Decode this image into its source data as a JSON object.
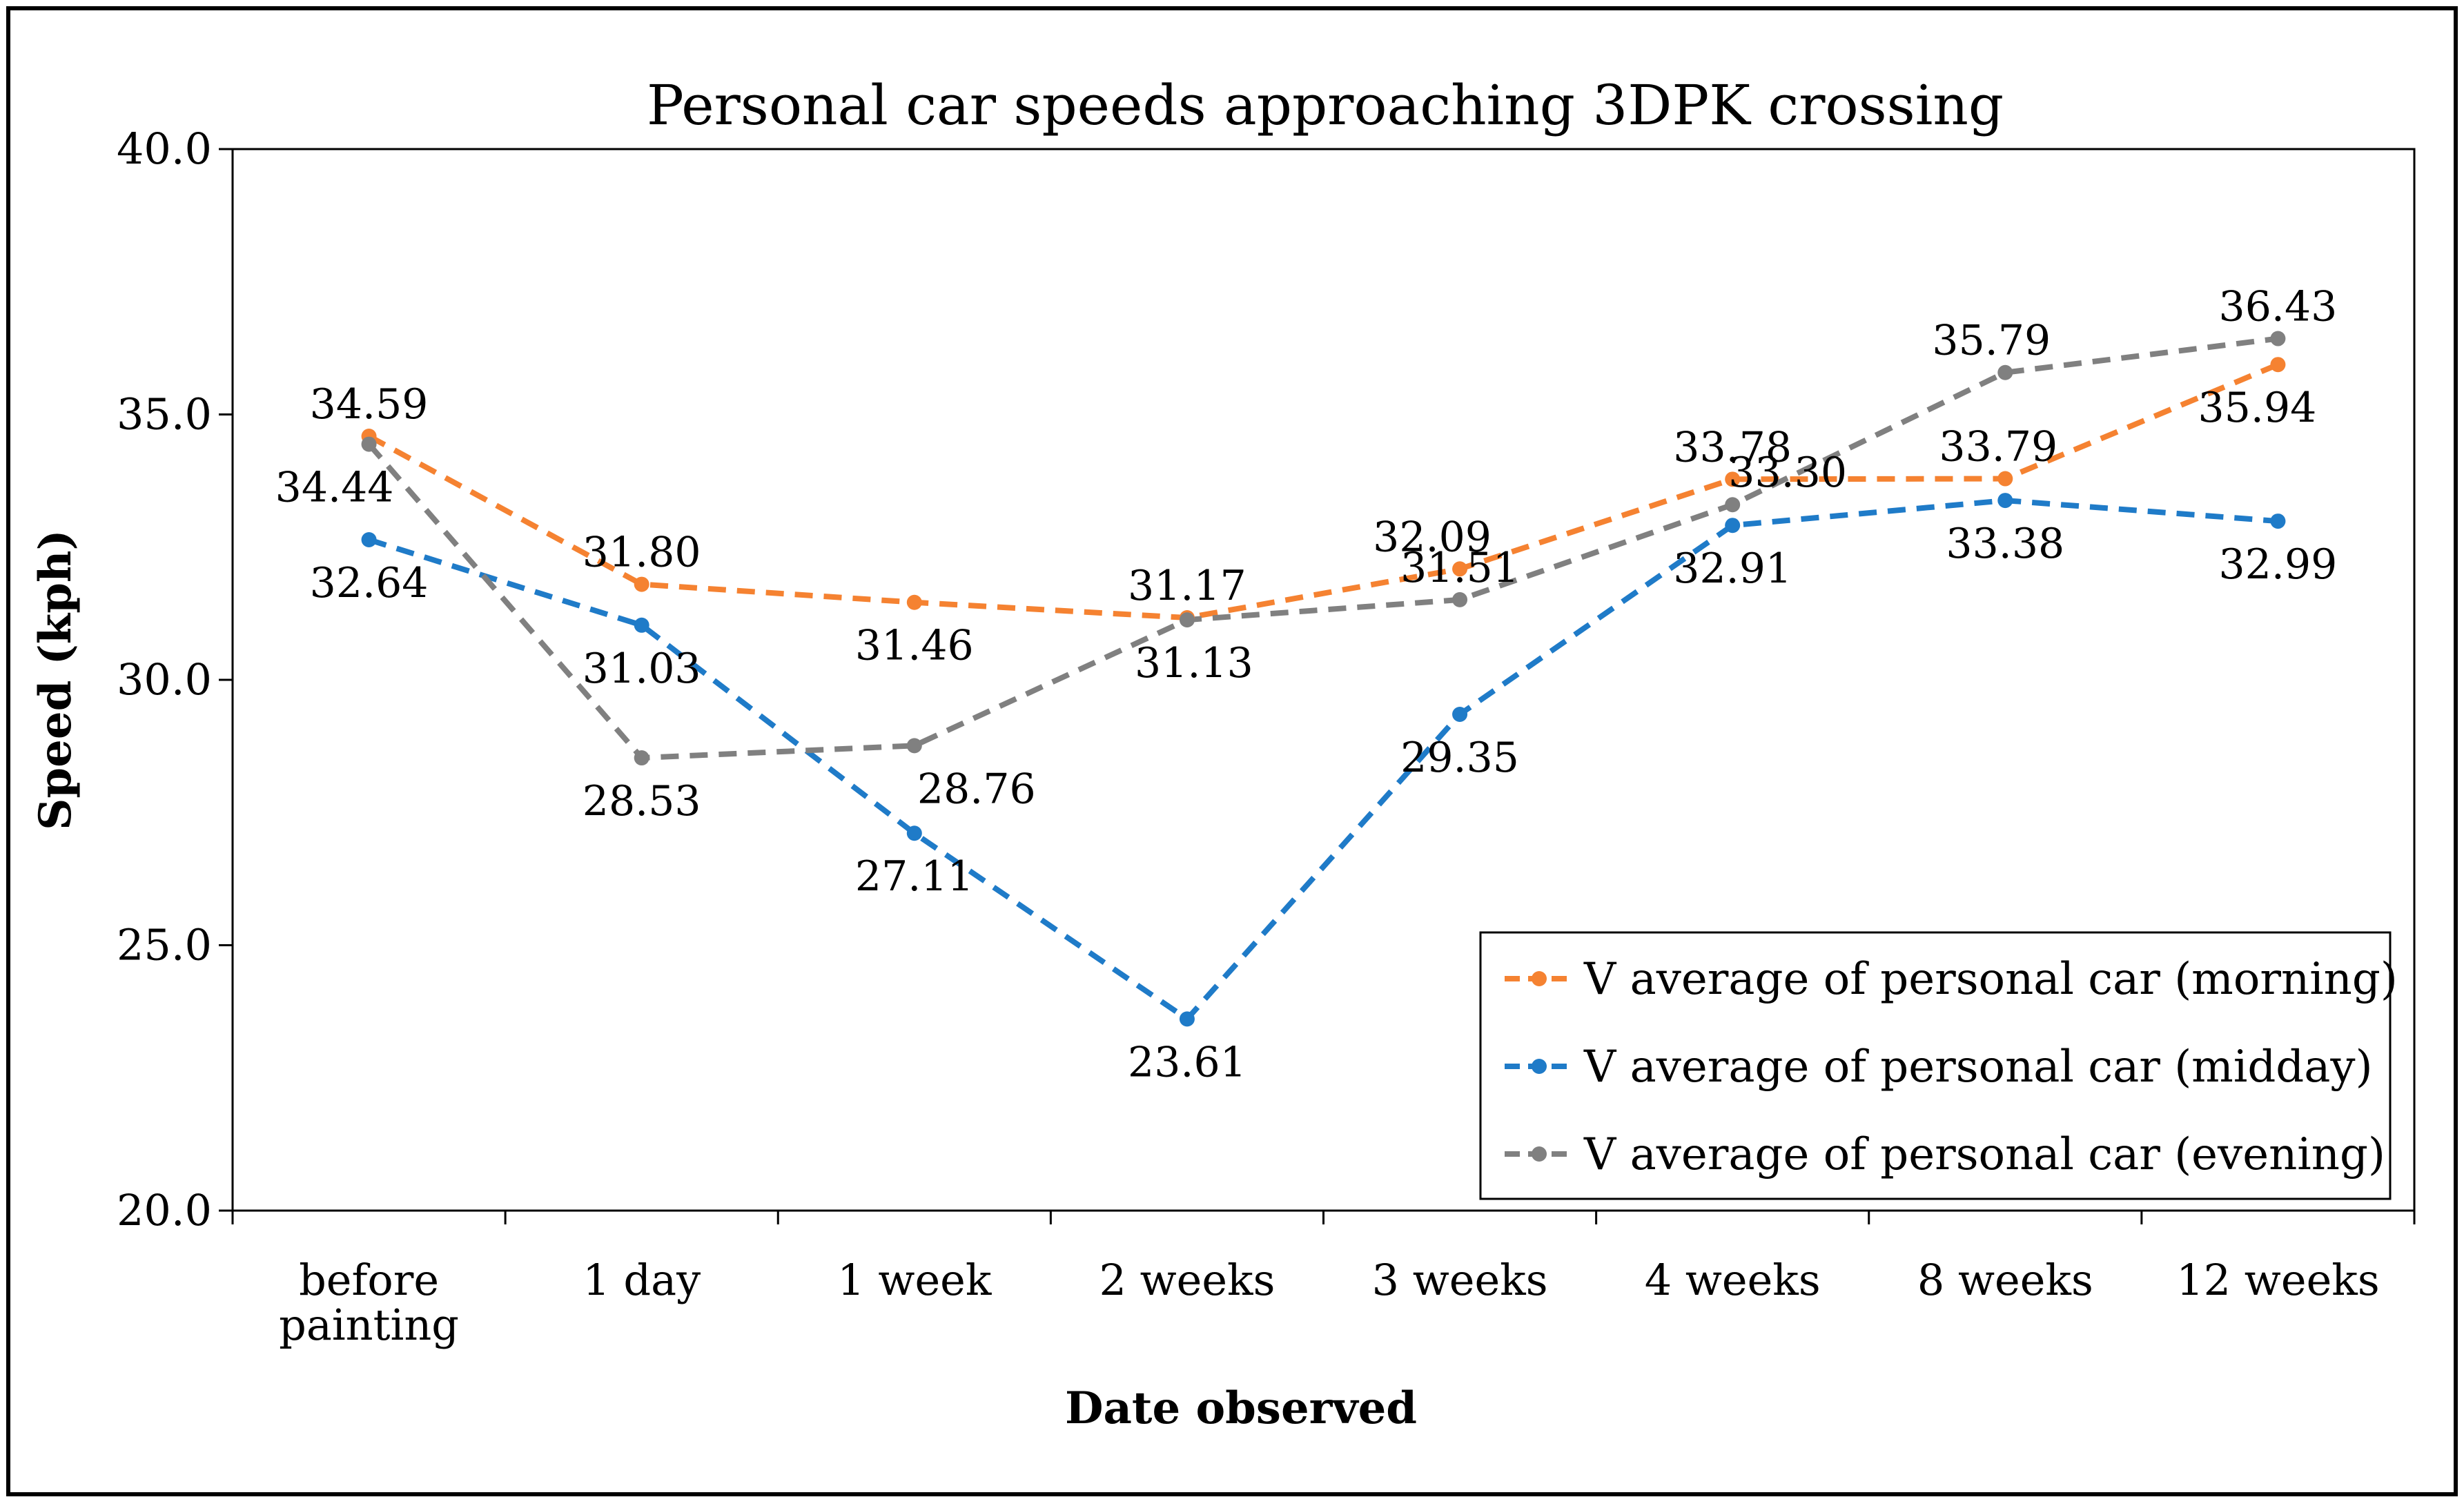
{
  "chart_data": {
    "type": "line",
    "title": "Personal car speeds approaching 3DPK crossing",
    "xlabel": "Date observed",
    "ylabel": "Speed (kph)",
    "ylim": [
      20,
      40
    ],
    "yticks": [
      20,
      25,
      30,
      35,
      40
    ],
    "ytick_labels": [
      "20.0",
      "25.0",
      "30.0",
      "35.0",
      "40.0"
    ],
    "categories": [
      [
        "before",
        "painting"
      ],
      [
        "1 day"
      ],
      [
        "1 week"
      ],
      [
        "2 weeks"
      ],
      [
        "3 weeks"
      ],
      [
        "4 weeks"
      ],
      [
        "8 weeks"
      ],
      [
        "12 weeks"
      ]
    ],
    "legend_position": "bottom-right",
    "series": [
      {
        "name": "V average of personal car (morning)",
        "color": "#F58231",
        "values": [
          34.59,
          31.8,
          31.46,
          31.17,
          32.09,
          33.78,
          33.79,
          35.94
        ],
        "labels": [
          "34.59",
          "31.80",
          "31.46",
          "31.17",
          "32.09",
          "33.78",
          "33.79",
          "35.94"
        ]
      },
      {
        "name": "V average of personal car (midday)",
        "color": "#1F7BC8",
        "values": [
          32.64,
          31.03,
          27.11,
          23.61,
          29.35,
          32.91,
          33.38,
          32.99
        ],
        "labels": [
          "32.64",
          "31.03",
          "27.11",
          "23.61",
          "29.35",
          "32.91",
          "33.38",
          "32.99"
        ]
      },
      {
        "name": "V average of personal car (evening)",
        "color": "#808080",
        "values": [
          34.44,
          28.53,
          28.76,
          31.13,
          31.51,
          33.3,
          35.79,
          36.43
        ],
        "labels": [
          "34.44",
          "28.53",
          "28.76",
          "31.13",
          "31.51",
          "33.30",
          "35.79",
          "36.43"
        ]
      }
    ]
  }
}
